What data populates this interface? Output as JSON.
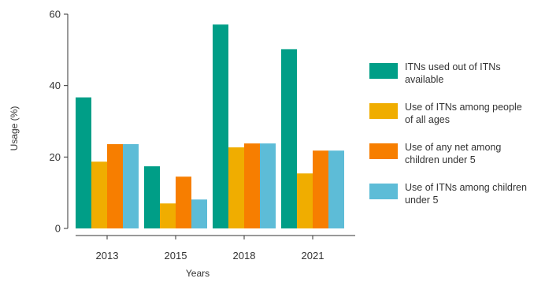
{
  "chart_data": {
    "type": "bar",
    "title": "",
    "xlabel": "Years",
    "ylabel": "Usage (%)",
    "ylim": [
      0,
      60
    ],
    "yticks": [
      0,
      20,
      40,
      60
    ],
    "grid": false,
    "legend_position": "right",
    "categories": [
      "2013",
      "2015",
      "2018",
      "2021"
    ],
    "series": [
      {
        "name": "ITNs used out of ITNs available",
        "legend_lines": [
          "ITNs used out of ITNs",
          "available"
        ],
        "color": "#009E87",
        "values": [
          36.7,
          17.4,
          57.1,
          50.2
        ]
      },
      {
        "name": "Use of ITNs among people of all ages",
        "legend_lines": [
          "Use of ITNs among people",
          "of all ages"
        ],
        "color": "#F0AD00",
        "values": [
          18.7,
          7.0,
          22.7,
          15.4
        ]
      },
      {
        "name": "Use of any net among children under 5",
        "legend_lines": [
          "Use of any net among",
          "children under 5"
        ],
        "color": "#F77E00",
        "values": [
          23.6,
          14.5,
          23.8,
          21.8
        ]
      },
      {
        "name": "Use of ITNs among children under 5",
        "legend_lines": [
          "Use of ITNs among children",
          "under 5"
        ],
        "color": "#5DBCD7",
        "values": [
          23.6,
          8.1,
          23.8,
          21.8
        ]
      }
    ]
  }
}
